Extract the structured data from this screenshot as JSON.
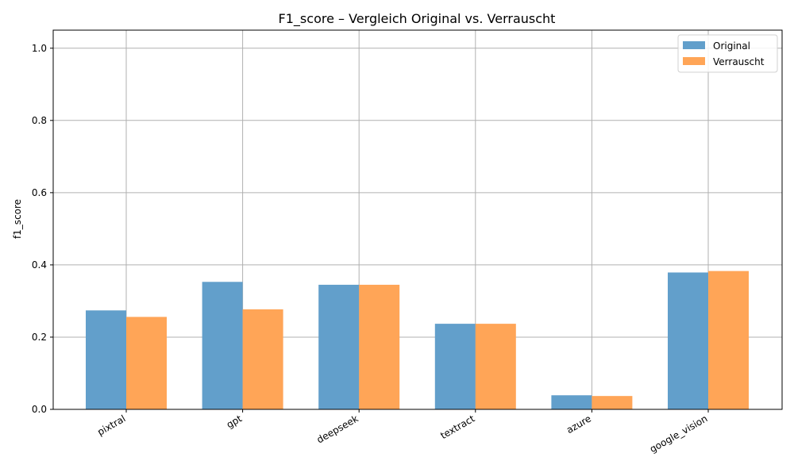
{
  "chart_data": {
    "type": "bar",
    "title": "F1_score – Vergleich Original vs. Verrauscht",
    "xlabel": "",
    "ylabel": "f1_score",
    "ylim": [
      0,
      1.05
    ],
    "yticks": [
      0.0,
      0.2,
      0.4,
      0.6,
      0.8,
      1.0
    ],
    "ytick_labels": [
      "0.0",
      "0.2",
      "0.4",
      "0.6",
      "0.8",
      "1.0"
    ],
    "grid": true,
    "legend_position": "top-right",
    "categories": [
      "pixtral",
      "gpt",
      "deepseek",
      "textract",
      "azure",
      "google_vision"
    ],
    "series": [
      {
        "name": "Original",
        "color": "#629fcb",
        "values": [
          0.274,
          0.353,
          0.345,
          0.237,
          0.039,
          0.379
        ]
      },
      {
        "name": "Verrauscht",
        "color": "#ffa557",
        "values": [
          0.256,
          0.277,
          0.345,
          0.237,
          0.037,
          0.383
        ]
      }
    ]
  }
}
